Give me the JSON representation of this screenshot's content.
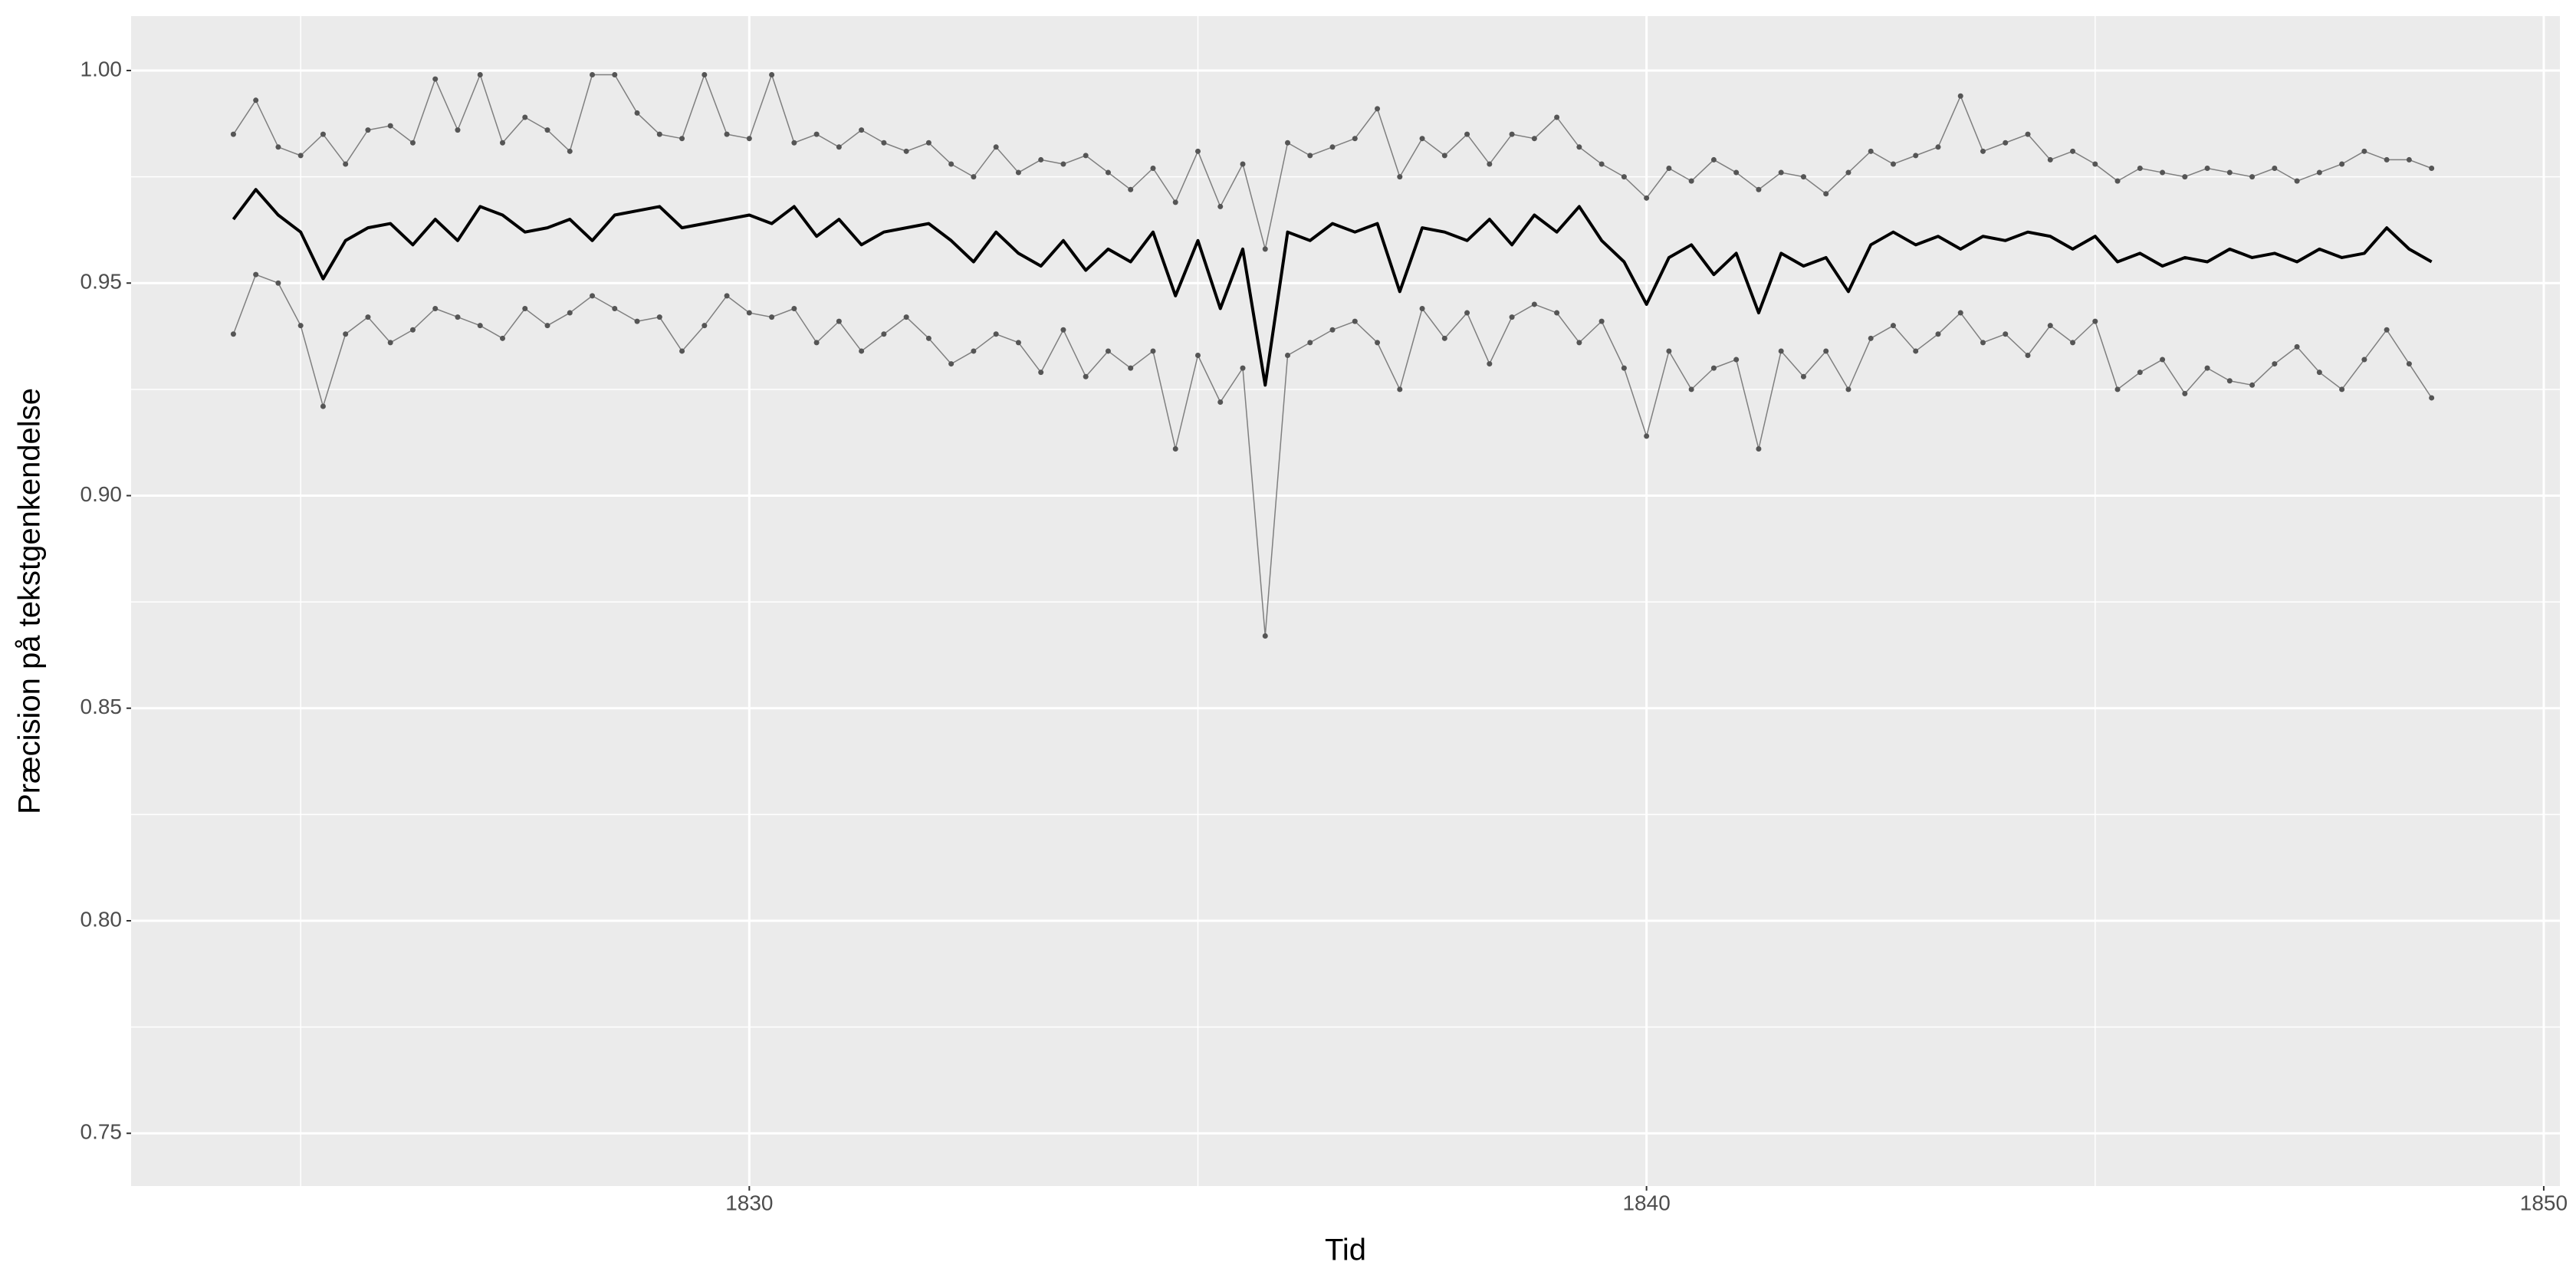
{
  "chart_data": {
    "type": "line",
    "x_label": "Tid",
    "y_label": "Præcision på tekstgenkendelse",
    "x": [
      1824.25,
      1824.5,
      1824.75,
      1825.0,
      1825.25,
      1825.5,
      1825.75,
      1826.0,
      1826.25,
      1826.5,
      1826.75,
      1827.0,
      1827.25,
      1827.5,
      1827.75,
      1828.0,
      1828.25,
      1828.5,
      1828.75,
      1829.0,
      1829.25,
      1829.5,
      1829.75,
      1830.0,
      1830.25,
      1830.5,
      1830.75,
      1831.0,
      1831.25,
      1831.5,
      1831.75,
      1832.0,
      1832.25,
      1832.5,
      1832.75,
      1833.0,
      1833.25,
      1833.5,
      1833.75,
      1834.0,
      1834.25,
      1834.5,
      1834.75,
      1835.0,
      1835.25,
      1835.5,
      1835.75,
      1836.0,
      1836.25,
      1836.5,
      1836.75,
      1837.0,
      1837.25,
      1837.5,
      1837.75,
      1838.0,
      1838.25,
      1838.5,
      1838.75,
      1839.0,
      1839.25,
      1839.5,
      1839.75,
      1840.0,
      1840.25,
      1840.5,
      1840.75,
      1841.0,
      1841.25,
      1841.5,
      1841.75,
      1842.0,
      1842.25,
      1842.5,
      1842.75,
      1843.0,
      1843.25,
      1843.5,
      1843.75,
      1844.0,
      1844.25,
      1844.5,
      1844.75,
      1845.0,
      1845.25,
      1845.5,
      1845.75,
      1846.0,
      1846.25,
      1846.5,
      1846.75,
      1847.0,
      1847.25,
      1847.5,
      1847.75,
      1848.0,
      1848.25,
      1848.5,
      1848.75
    ],
    "series": [
      {
        "color": "#7f7f7f",
        "markers": true,
        "values": [
          0.985,
          0.993,
          0.982,
          0.98,
          0.985,
          0.978,
          0.986,
          0.987,
          0.983,
          0.998,
          0.986,
          0.999,
          0.983,
          0.989,
          0.986,
          0.981,
          0.999,
          0.999,
          0.99,
          0.985,
          0.984,
          0.999,
          0.985,
          0.984,
          0.999,
          0.983,
          0.985,
          0.982,
          0.986,
          0.983,
          0.981,
          0.983,
          0.978,
          0.975,
          0.982,
          0.976,
          0.979,
          0.978,
          0.98,
          0.976,
          0.972,
          0.977,
          0.969,
          0.981,
          0.968,
          0.978,
          0.958,
          0.983,
          0.98,
          0.982,
          0.984,
          0.991,
          0.975,
          0.984,
          0.98,
          0.985,
          0.978,
          0.985,
          0.984,
          0.989,
          0.982,
          0.978,
          0.975,
          0.97,
          0.977,
          0.974,
          0.979,
          0.976,
          0.972,
          0.976,
          0.975,
          0.971,
          0.976,
          0.981,
          0.978,
          0.98,
          0.982,
          0.994,
          0.981,
          0.983,
          0.985,
          0.979,
          0.981,
          0.978,
          0.974,
          0.977,
          0.976,
          0.975,
          0.977,
          0.976,
          0.975,
          0.977,
          0.974,
          0.976,
          0.978,
          0.981,
          0.979,
          0.979,
          0.977
        ]
      },
      {
        "color": "#7f7f7f",
        "markers": true,
        "values": [
          0.938,
          0.952,
          0.95,
          0.94,
          0.921,
          0.938,
          0.942,
          0.936,
          0.939,
          0.944,
          0.942,
          0.94,
          0.937,
          0.944,
          0.94,
          0.943,
          0.947,
          0.944,
          0.941,
          0.942,
          0.934,
          0.94,
          0.947,
          0.943,
          0.942,
          0.944,
          0.936,
          0.941,
          0.934,
          0.938,
          0.942,
          0.937,
          0.931,
          0.934,
          0.938,
          0.936,
          0.929,
          0.939,
          0.928,
          0.934,
          0.93,
          0.934,
          0.911,
          0.933,
          0.922,
          0.93,
          0.867,
          0.933,
          0.936,
          0.939,
          0.941,
          0.936,
          0.925,
          0.944,
          0.937,
          0.943,
          0.931,
          0.942,
          0.945,
          0.943,
          0.936,
          0.941,
          0.93,
          0.914,
          0.934,
          0.925,
          0.93,
          0.932,
          0.911,
          0.934,
          0.928,
          0.934,
          0.925,
          0.937,
          0.94,
          0.934,
          0.938,
          0.943,
          0.936,
          0.938,
          0.933,
          0.94,
          0.936,
          0.941,
          0.925,
          0.929,
          0.932,
          0.924,
          0.93,
          0.927,
          0.926,
          0.931,
          0.935,
          0.929,
          0.925,
          0.932,
          0.939,
          0.931,
          0.923
        ]
      },
      {
        "color": "#000000",
        "markers": false,
        "values": [
          0.965,
          0.972,
          0.966,
          0.962,
          0.951,
          0.96,
          0.963,
          0.964,
          0.959,
          0.965,
          0.96,
          0.968,
          0.966,
          0.962,
          0.963,
          0.965,
          0.96,
          0.966,
          0.967,
          0.968,
          0.963,
          0.964,
          0.965,
          0.966,
          0.964,
          0.968,
          0.961,
          0.965,
          0.959,
          0.962,
          0.963,
          0.964,
          0.96,
          0.955,
          0.962,
          0.957,
          0.954,
          0.96,
          0.953,
          0.958,
          0.955,
          0.962,
          0.947,
          0.96,
          0.944,
          0.958,
          0.926,
          0.962,
          0.96,
          0.964,
          0.962,
          0.964,
          0.948,
          0.963,
          0.962,
          0.96,
          0.965,
          0.959,
          0.966,
          0.962,
          0.968,
          0.96,
          0.955,
          0.945,
          0.956,
          0.959,
          0.952,
          0.957,
          0.943,
          0.957,
          0.954,
          0.956,
          0.948,
          0.959,
          0.962,
          0.959,
          0.961,
          0.958,
          0.961,
          0.96,
          0.962,
          0.961,
          0.958,
          0.961,
          0.955,
          0.957,
          0.954,
          0.956,
          0.955,
          0.958,
          0.956,
          0.957,
          0.955,
          0.958,
          0.956,
          0.957,
          0.963,
          0.958,
          0.955
        ]
      }
    ],
    "xlim": [
      1823.11,
      1850.18
    ],
    "ylim": [
      0.7376,
      1.0128
    ],
    "xticks": [
      1830,
      1840,
      1850
    ],
    "yticks": [
      0.75,
      {
        "value": 0.8,
        "label": "0.80"
      },
      0.85,
      {
        "value": 0.9,
        "label": "0.90"
      },
      0.95,
      {
        "value": 1,
        "label": "1.00"
      }
    ],
    "grid": true,
    "panel_color": "#ebebeb"
  }
}
